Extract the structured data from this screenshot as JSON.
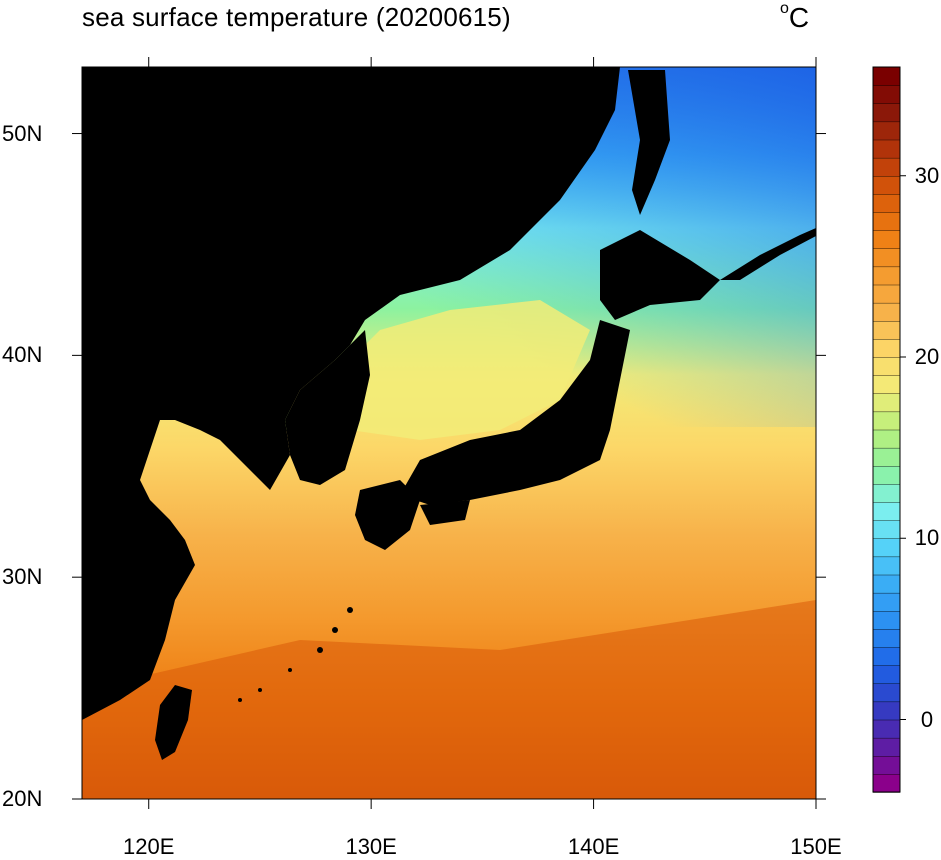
{
  "title": "sea surface temperature (20200615)",
  "units": {
    "base": "C",
    "sup": "o"
  },
  "map": {
    "lon_range": [
      117,
      150
    ],
    "lat_range": [
      20,
      53
    ],
    "x_ticks": [
      "120E",
      "130E",
      "140E",
      "150E"
    ],
    "x_tick_values": [
      120,
      130,
      140,
      150
    ],
    "y_ticks": [
      "20N",
      "30N",
      "40N",
      "50N"
    ],
    "y_tick_values": [
      20,
      30,
      40,
      50
    ],
    "land_color": "#000000"
  },
  "colorbar": {
    "min": -4,
    "max": 36,
    "levels": 40,
    "labels": [
      "0",
      "10",
      "20",
      "30"
    ],
    "label_values": [
      0,
      10,
      20,
      30
    ],
    "colors": [
      "#8b008b",
      "#5a1fa6",
      "#2f3fc6",
      "#1e64e6",
      "#2a8cf2",
      "#38aaf5",
      "#55d2f8",
      "#7ef0ee",
      "#8cf2a0",
      "#b9f07c",
      "#f2ec78",
      "#fcd768",
      "#f7b24a",
      "#f49a2e",
      "#ee7d12",
      "#d85a0a",
      "#b8380a",
      "#8c1a0a",
      "#7a0000"
    ]
  }
}
